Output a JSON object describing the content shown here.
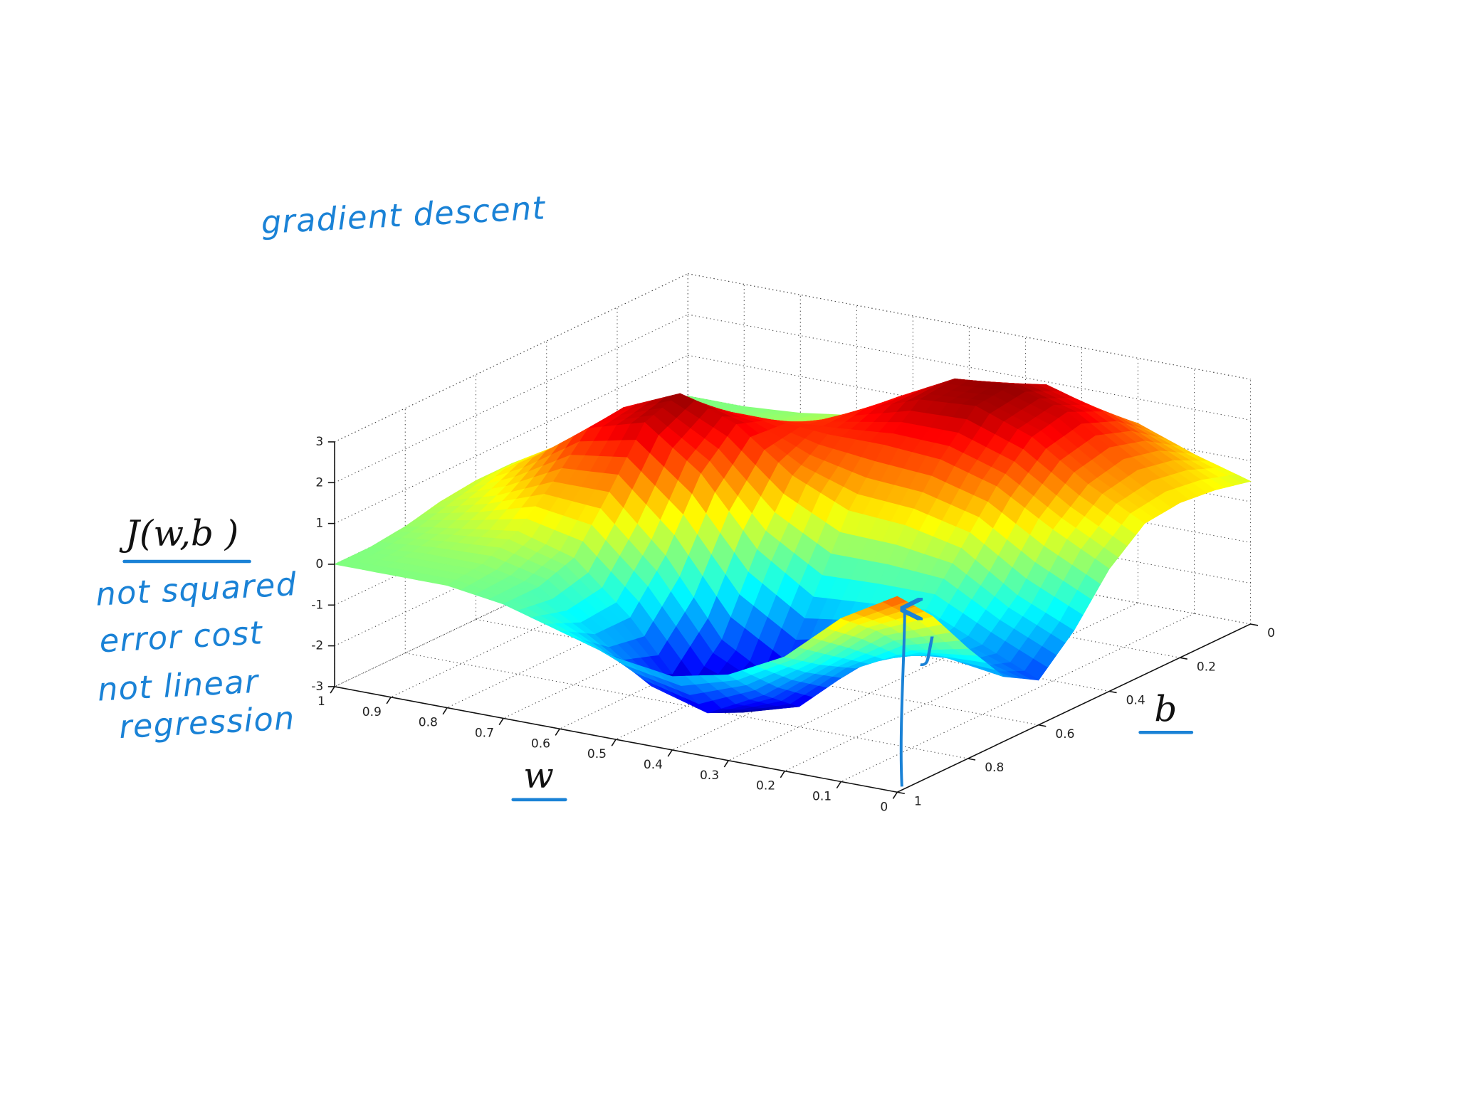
{
  "chart_data": {
    "type": "surface",
    "title": "gradient descent",
    "z_label": "J(w,b )",
    "x_label": "w",
    "y_label": "b",
    "notes": [
      "not squared",
      "error cost",
      "not linear",
      "regression"
    ],
    "arrow_label": "J",
    "x": [
      0,
      0.1,
      0.2,
      0.3,
      0.4,
      0.5,
      0.6,
      0.7,
      0.8,
      0.9,
      1
    ],
    "y": [
      0,
      0.1,
      0.2,
      0.3,
      0.4,
      0.5,
      0.6,
      0.7,
      0.8,
      0.9,
      1
    ],
    "z": [
      [
        0.5,
        0.9,
        1.4,
        1.6,
        1.5,
        1.1,
        0.6,
        0.3,
        0.1,
        0,
        0
      ],
      [
        0.7,
        1.4,
        2.1,
        2.5,
        2.3,
        1.7,
        0.9,
        0.4,
        0.2,
        0.1,
        0
      ],
      [
        0.8,
        1.6,
        2.5,
        2.9,
        2.8,
        2.1,
        1.3,
        0.7,
        0.3,
        0.1,
        0
      ],
      [
        0.7,
        1.4,
        2.3,
        2.8,
        2.7,
        2.2,
        1.6,
        1.2,
        0.8,
        0.4,
        0.1
      ],
      [
        0,
        0.7,
        1.5,
        1.9,
        2.0,
        2.0,
        2.1,
        2.1,
        1.6,
        0.8,
        0.3
      ],
      [
        -1.1,
        -0.5,
        0.4,
        0.7,
        0.8,
        1.4,
        2.4,
        2.9,
        2.3,
        1.2,
        0.4
      ],
      [
        -1.9,
        -1.3,
        -0.7,
        -0.8,
        -0.9,
        0,
        1.6,
        2.6,
        2.2,
        1.2,
        0.4
      ],
      [
        -1.4,
        -1.2,
        -1.3,
        -2.1,
        -2.6,
        -1.8,
        0,
        1.3,
        1.3,
        0.7,
        0.3
      ],
      [
        -0.3,
        -0.6,
        -1.3,
        -2.5,
        -2.9,
        -2.7,
        -1.1,
        0.1,
        0.5,
        0.3,
        0.1
      ],
      [
        0.9,
        0.3,
        -0.8,
        -1.8,
        -2.5,
        -2.1,
        -1.1,
        -0.2,
        0.1,
        0.1,
        0
      ],
      [
        1.8,
        1.0,
        -0.2,
        -0.9,
        -1.2,
        -1.0,
        -0.6,
        -0.2,
        0,
        0,
        0
      ]
    ],
    "xlim": [
      0,
      1
    ],
    "ylim": [
      0,
      1
    ],
    "zlim": [
      -3,
      3
    ],
    "xticks": [
      0,
      0.1,
      0.2,
      0.3,
      0.4,
      0.5,
      0.6,
      0.7,
      0.8,
      0.9,
      1
    ],
    "yticks": [
      0,
      0.2,
      0.4,
      0.6,
      0.8,
      1
    ],
    "zticks": [
      -3,
      -2,
      -1,
      0,
      1,
      2,
      3
    ],
    "colormap": "jet",
    "grid": true
  }
}
